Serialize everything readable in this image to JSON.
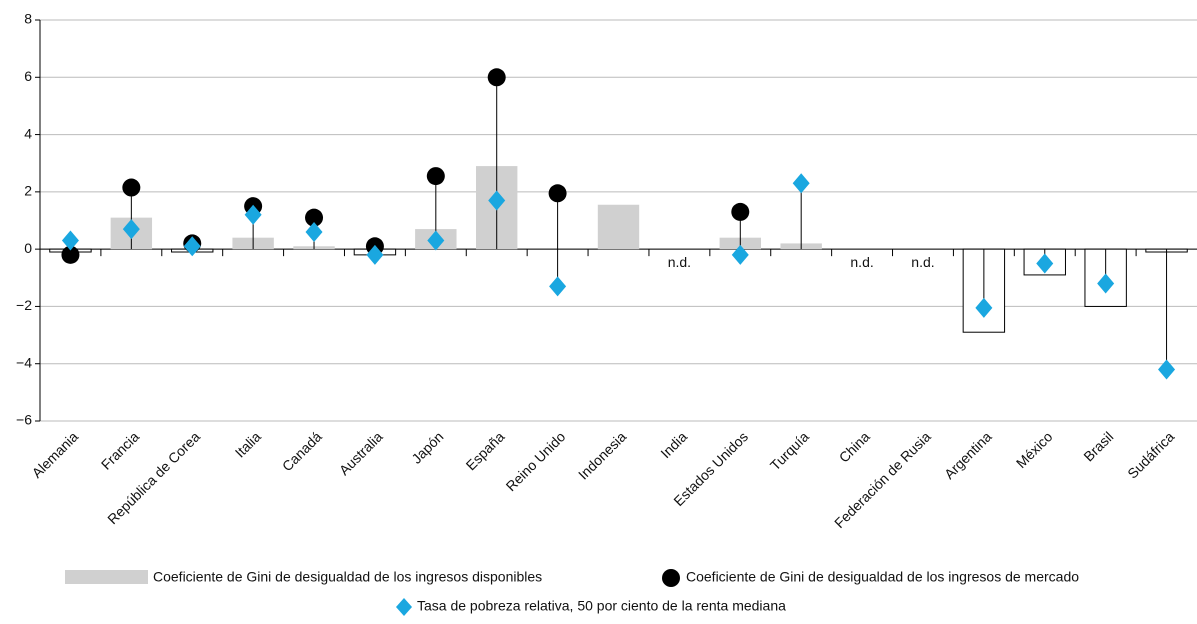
{
  "chart_data": {
    "type": "bar",
    "categories": [
      "Alemania",
      "Francia",
      "República de Corea",
      "Italia",
      "Canadá",
      "Australia",
      "Japón",
      "España",
      "Reino Unido",
      "Indonesia",
      "India",
      "Estados Unidos",
      "Turquía",
      "China",
      "Federación de Rusia",
      "Argentina",
      "México",
      "Brasil",
      "Sudáfrica"
    ],
    "series": [
      {
        "name": "Coeficiente de Gini de desigualdad de los ingresos disponibles",
        "color": "#d0d0d0",
        "marker": "bar",
        "values": [
          -0.1,
          1.1,
          -0.1,
          0.4,
          0.1,
          -0.2,
          0.7,
          2.9,
          0,
          1.55,
          null,
          0.4,
          0.2,
          null,
          null,
          -2.9,
          -0.9,
          -2.0,
          -0.1
        ],
        "value_labels": [
          null,
          null,
          null,
          null,
          null,
          null,
          null,
          null,
          null,
          null,
          "n.d.",
          null,
          null,
          "n.d.",
          "n.d.",
          null,
          null,
          null,
          null
        ]
      },
      {
        "name": "Coeficiente de Gini de desigualdad de los ingresos de mercado",
        "color": "#000000",
        "marker": "circle",
        "values": [
          -0.2,
          2.15,
          0.2,
          1.5,
          1.1,
          0.1,
          2.55,
          6.0,
          1.95,
          null,
          null,
          1.3,
          null,
          null,
          null,
          null,
          null,
          null,
          null
        ]
      },
      {
        "name": "Tasa de pobreza relativa, 50 por ciento de la renta mediana",
        "color": "#1aa7e0",
        "marker": "diamond",
        "values": [
          0.3,
          0.7,
          0.1,
          1.2,
          0.6,
          -0.2,
          0.3,
          1.7,
          -1.3,
          null,
          null,
          -0.2,
          2.3,
          null,
          null,
          -2.05,
          -0.5,
          -1.2,
          -4.2
        ]
      }
    ],
    "ylim": [
      -6,
      8
    ],
    "yticks": [
      {
        "value": -6,
        "label": "−6"
      },
      {
        "value": -4,
        "label": "−4"
      },
      {
        "value": -2,
        "label": "−2"
      },
      0,
      2,
      4,
      6,
      8
    ],
    "grid": true
  }
}
